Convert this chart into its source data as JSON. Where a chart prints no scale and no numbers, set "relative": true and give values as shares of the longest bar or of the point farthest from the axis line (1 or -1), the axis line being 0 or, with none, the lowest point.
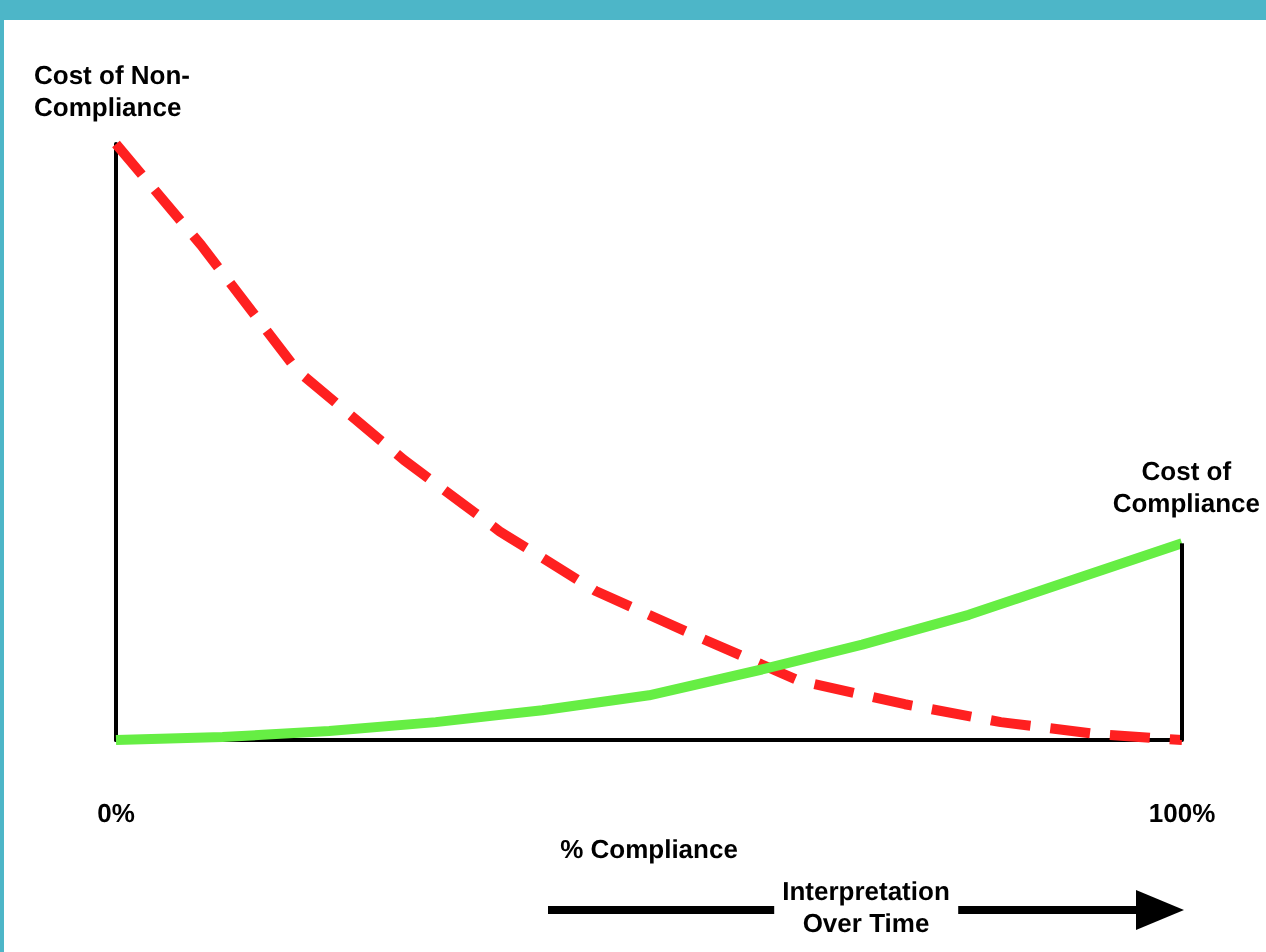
{
  "chart_data": {
    "type": "line",
    "relative": true,
    "xlabel": "% Compliance",
    "xlim": [
      0,
      100
    ],
    "xticks": [
      {
        "value": 0,
        "label": "0%"
      },
      {
        "value": 100,
        "label": "100%"
      }
    ],
    "grid": false,
    "marker": "none",
    "annotations": [
      "Cost of Non-\nCompliance",
      "Cost of\nCompliance",
      "Interpretation\nOver Time"
    ],
    "series": [
      {
        "color": "#ff2020",
        "line_style": "dashed",
        "x": [
          0,
          8,
          17,
          27,
          36,
          45,
          55,
          64,
          74,
          83,
          92,
          100
        ],
        "values": [
          1,
          0.83,
          0.62,
          0.47,
          0.35,
          0.25,
          0.17,
          0.1,
          0.06,
          0.03,
          0.01,
          0
        ]
      },
      {
        "color": "#66ee44",
        "line_style": "solid",
        "x": [
          0,
          10,
          20,
          30,
          40,
          50,
          61,
          70,
          80,
          90,
          100
        ],
        "values": [
          0,
          0.005,
          0.015,
          0.03,
          0.05,
          0.075,
          0.12,
          0.16,
          0.21,
          0.27,
          0.33
        ]
      }
    ]
  }
}
